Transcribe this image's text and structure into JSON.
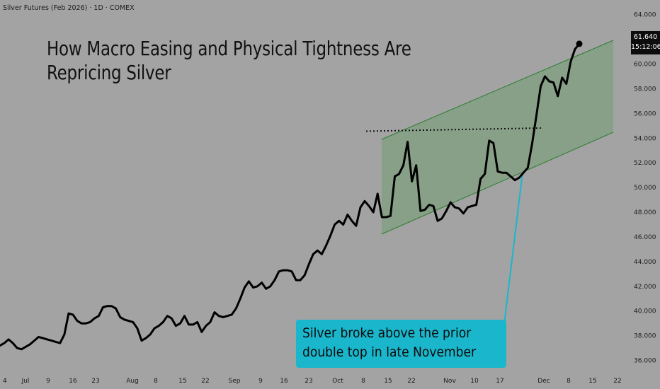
{
  "header": {
    "symbol": "Silver Futures (Feb 2026) · 1D · COMEX",
    "headline_line1": "How Macro Easing and Physical Tightness Are",
    "headline_line2": "Repricing Silver"
  },
  "price_badge": {
    "price": "61.640",
    "countdown": "15:12:06"
  },
  "callout": {
    "line1": "Silver broke above the prior",
    "line2": "double top in late November"
  },
  "colors": {
    "background": "#a3a3a3",
    "price_line": "#000000",
    "channel_fill": "#7f9f7f",
    "channel_border": "#2e7d32",
    "callout": "#1ab6cc"
  },
  "chart_data": {
    "type": "line",
    "title": "",
    "xlabel": "",
    "ylabel": "",
    "ylim": [
      35,
      64.5
    ],
    "y_ticks": [
      36,
      38,
      40,
      42,
      44,
      46,
      48,
      50,
      52,
      54,
      56,
      58,
      60,
      62,
      64
    ],
    "y_tick_labels": [
      "36.000",
      "38.000",
      "40.000",
      "42.000",
      "44.000",
      "46.000",
      "48.000",
      "50.000",
      "52.000",
      "54.000",
      "56.000",
      "58.000",
      "60.000",
      "62.000",
      "64.000"
    ],
    "x_tick_labels": [
      "4",
      "Jul",
      "9",
      "16",
      "23",
      "Aug",
      "8",
      "15",
      "22",
      "Sep",
      "9",
      "16",
      "23",
      "Oct",
      "8",
      "15",
      "22",
      "Nov",
      "10",
      "17",
      "Dec",
      "8",
      "15",
      "22"
    ],
    "grid": false,
    "last_price": 61.64,
    "series": [
      {
        "values": [
          37.2,
          37.4,
          37.7,
          37.4,
          37.0,
          36.9,
          37.1,
          37.3,
          37.6,
          37.9,
          37.8,
          37.7,
          37.6,
          37.5,
          37.4,
          38.1,
          39.8,
          39.7,
          39.2,
          39.0,
          39.0,
          39.1,
          39.4,
          39.6,
          40.3,
          40.4,
          40.4,
          40.2,
          39.5,
          39.3,
          39.2,
          39.1,
          38.6,
          37.6,
          37.8,
          38.1,
          38.6,
          38.8,
          39.1,
          39.6,
          39.4,
          38.8,
          39.0,
          39.6,
          38.9,
          38.9,
          39.1,
          38.3,
          38.8,
          39.1,
          39.9,
          39.6,
          39.5,
          39.6,
          39.7,
          40.2,
          41.0,
          41.9,
          42.4,
          41.9,
          42.0,
          42.3,
          41.8,
          42.0,
          42.5,
          43.2,
          43.3,
          43.3,
          43.2,
          42.5,
          42.5,
          42.9,
          43.8,
          44.6,
          44.9,
          44.6,
          45.3,
          46.1,
          47.0,
          47.3,
          47.0,
          47.8,
          47.3,
          46.9,
          48.4,
          48.9,
          48.5,
          48.0,
          49.5,
          47.6,
          47.6,
          47.7,
          50.9,
          51.1,
          51.8,
          53.7,
          50.5,
          51.8,
          48.1,
          48.2,
          48.6,
          48.5,
          47.3,
          47.5,
          48.1,
          48.8,
          48.4,
          48.3,
          47.9,
          48.4,
          48.5,
          48.6,
          50.7,
          51.1,
          53.8,
          53.6,
          51.3,
          51.2,
          51.2,
          50.9,
          50.6,
          50.8,
          51.2,
          51.6,
          53.5,
          55.8,
          58.2,
          59.0,
          58.6,
          58.5,
          57.4,
          58.9,
          58.4,
          60.2,
          61.2,
          61.64
        ]
      }
    ],
    "annotations": {
      "resistance_level": 54.0,
      "channel_note": "ascending channel",
      "callout_text": [
        "Silver broke above the prior",
        "double top in late November"
      ]
    }
  }
}
